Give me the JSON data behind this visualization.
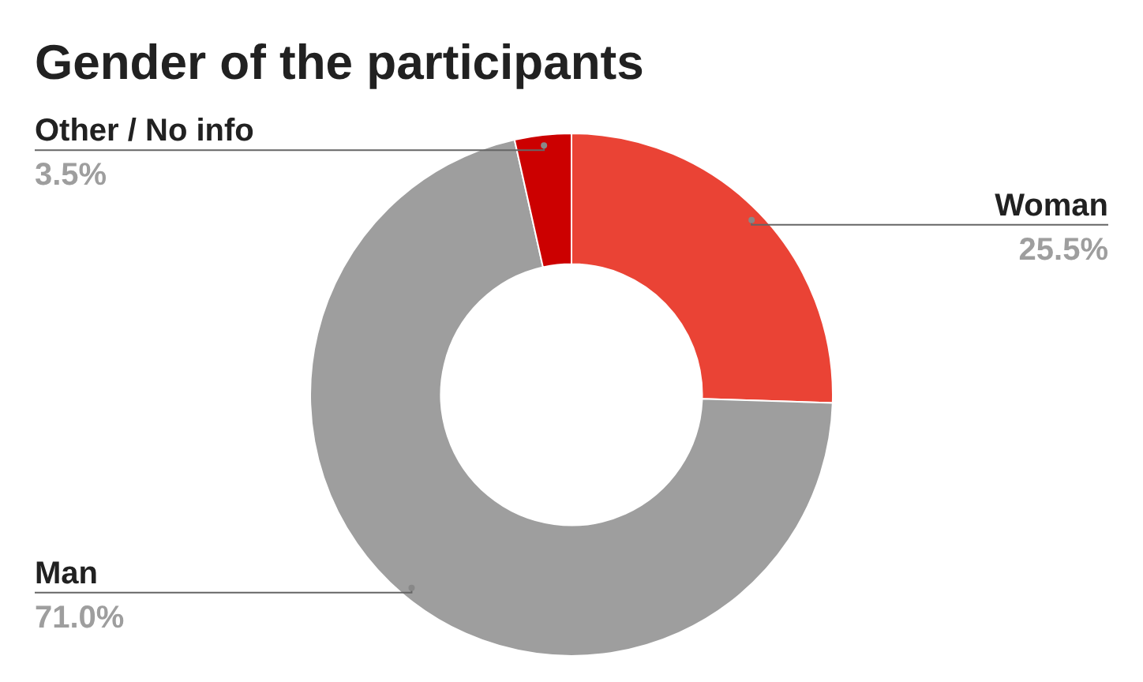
{
  "chart_data": {
    "type": "donut",
    "title": "Gender of the participants",
    "categories": [
      "Woman",
      "Man",
      "Other / No info"
    ],
    "values": [
      25.5,
      71.0,
      3.5
    ],
    "colors": [
      "#ea4335",
      "#9e9e9e",
      "#cc0000"
    ],
    "value_labels": [
      "25.5%",
      "71.0%",
      "3.5%"
    ],
    "legend": false
  }
}
